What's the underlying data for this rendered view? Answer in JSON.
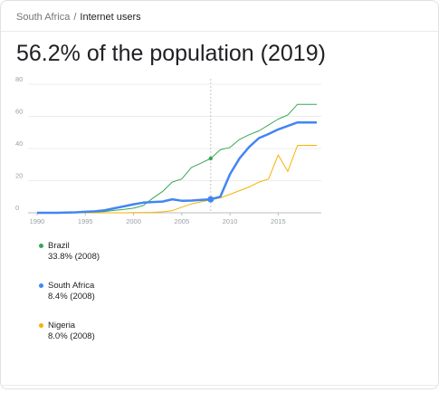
{
  "breadcrumb": {
    "country": "South Africa",
    "separator": "/",
    "topic": "Internet users"
  },
  "headline": "56.2% of the population (2019)",
  "chart_data": {
    "type": "line",
    "x_ticks": [
      1990,
      1995,
      2000,
      2005,
      2010,
      2015
    ],
    "y_ticks": [
      0,
      20,
      40,
      60,
      80
    ],
    "xlim": [
      1990,
      2019
    ],
    "ylim": [
      0,
      80
    ],
    "highlight_year": 2008,
    "grid": true,
    "series": [
      {
        "name": "Brazil",
        "color": "#34a853",
        "emphasized": false,
        "highlight_value": "33.8% (2008)",
        "x": [
          1990,
          1991,
          1992,
          1993,
          1994,
          1995,
          1996,
          1997,
          1998,
          1999,
          2000,
          2001,
          2002,
          2003,
          2004,
          2005,
          2006,
          2007,
          2008,
          2009,
          2010,
          2011,
          2012,
          2013,
          2014,
          2015,
          2016,
          2017,
          2018,
          2019
        ],
        "y": [
          0,
          0,
          0,
          0,
          0,
          0.1,
          0.5,
          0.8,
          1.5,
          2.1,
          2.9,
          4.5,
          9.1,
          13.2,
          19.1,
          21.0,
          28.2,
          30.9,
          33.8,
          39.2,
          40.7,
          45.7,
          48.6,
          51.0,
          54.6,
          58.3,
          60.9,
          67.5,
          67.5,
          67.5
        ]
      },
      {
        "name": "South Africa",
        "color": "#4285f4",
        "emphasized": true,
        "highlight_value": "8.4% (2008)",
        "x": [
          1990,
          1991,
          1992,
          1993,
          1994,
          1995,
          1996,
          1997,
          1998,
          1999,
          2000,
          2001,
          2002,
          2003,
          2004,
          2005,
          2006,
          2007,
          2008,
          2009,
          2010,
          2011,
          2012,
          2013,
          2014,
          2015,
          2016,
          2017,
          2018,
          2019
        ],
        "y": [
          0,
          0,
          0,
          0.1,
          0.3,
          0.6,
          0.9,
          1.6,
          2.8,
          4.0,
          5.3,
          6.3,
          6.7,
          7.0,
          8.4,
          7.5,
          7.6,
          8.0,
          8.4,
          10.0,
          24.0,
          34.0,
          41.0,
          46.5,
          49.0,
          51.9,
          54.0,
          56.2,
          56.2,
          56.2
        ]
      },
      {
        "name": "Nigeria",
        "color": "#f4b400",
        "emphasized": false,
        "highlight_value": "8.0% (2008)",
        "x": [
          1990,
          1991,
          1992,
          1993,
          1994,
          1995,
          1996,
          1997,
          1998,
          1999,
          2000,
          2001,
          2002,
          2003,
          2004,
          2005,
          2006,
          2007,
          2008,
          2009,
          2010,
          2011,
          2012,
          2013,
          2014,
          2015,
          2016,
          2017,
          2018,
          2019
        ],
        "y": [
          0,
          0,
          0,
          0,
          0,
          0,
          0,
          0,
          0,
          0,
          0.1,
          0.1,
          0.3,
          0.6,
          1.3,
          3.5,
          5.5,
          6.8,
          8.0,
          9.3,
          11.5,
          13.8,
          16.1,
          19.1,
          21.0,
          36.0,
          25.7,
          42.0,
          42.0,
          42.0
        ]
      }
    ]
  }
}
